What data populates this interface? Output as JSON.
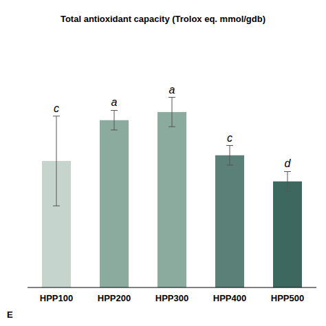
{
  "chart_data": {
    "type": "bar",
    "title": "Total antioxidant  capacity (Trolox eq. mmol/gdb)",
    "categories": [
      "HPP100",
      "HPP200",
      "HPP300",
      "HPP400",
      "HPP500"
    ],
    "values": [
      1.55,
      2.05,
      2.15,
      1.62,
      1.3
    ],
    "errors": [
      0.55,
      0.12,
      0.18,
      0.12,
      0.12
    ],
    "significance": [
      "c",
      "a",
      "a",
      "c",
      "d"
    ],
    "colors": [
      "#c5d5ce",
      "#8aab9e",
      "#8aab9e",
      "#5a8078",
      "#3d6860"
    ],
    "annotations": [
      "E"
    ],
    "ylim": [
      0,
      3.0
    ],
    "grid": false,
    "tick_labels": "x"
  }
}
